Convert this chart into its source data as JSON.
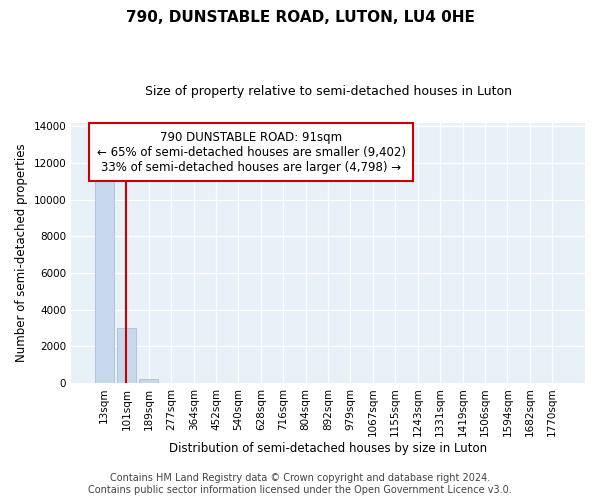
{
  "title": "790, DUNSTABLE ROAD, LUTON, LU4 0HE",
  "subtitle": "Size of property relative to semi-detached houses in Luton",
  "xlabel": "Distribution of semi-detached houses by size in Luton",
  "ylabel": "Number of semi-detached properties",
  "bar_color": "#c8d8ec",
  "bar_edge_color": "#a0b8d0",
  "vline_color": "#cc0000",
  "vline_x": 1,
  "annotation_text": "790 DUNSTABLE ROAD: 91sqm\n← 65% of semi-detached houses are smaller (9,402)\n33% of semi-detached houses are larger (4,798) →",
  "annotation_box_color": "white",
  "annotation_box_edge": "#cc0000",
  "categories": [
    "13sqm",
    "101sqm",
    "189sqm",
    "277sqm",
    "364sqm",
    "452sqm",
    "540sqm",
    "628sqm",
    "716sqm",
    "804sqm",
    "892sqm",
    "979sqm",
    "1067sqm",
    "1155sqm",
    "1243sqm",
    "1331sqm",
    "1419sqm",
    "1506sqm",
    "1594sqm",
    "1682sqm",
    "1770sqm"
  ],
  "values": [
    11400,
    3000,
    200,
    0,
    0,
    0,
    0,
    0,
    0,
    0,
    0,
    0,
    0,
    0,
    0,
    0,
    0,
    0,
    0,
    0,
    0
  ],
  "ylim": [
    0,
    14200
  ],
  "yticks": [
    0,
    2000,
    4000,
    6000,
    8000,
    10000,
    12000,
    14000
  ],
  "footer_line1": "Contains HM Land Registry data © Crown copyright and database right 2024.",
  "footer_line2": "Contains public sector information licensed under the Open Government Licence v3.0.",
  "background_color": "#ffffff",
  "plot_background_color": "#e8f0f8",
  "grid_color": "white",
  "title_fontsize": 11,
  "subtitle_fontsize": 9,
  "axis_label_fontsize": 8.5,
  "tick_fontsize": 7.5,
  "annotation_fontsize": 8.5,
  "footer_fontsize": 7
}
